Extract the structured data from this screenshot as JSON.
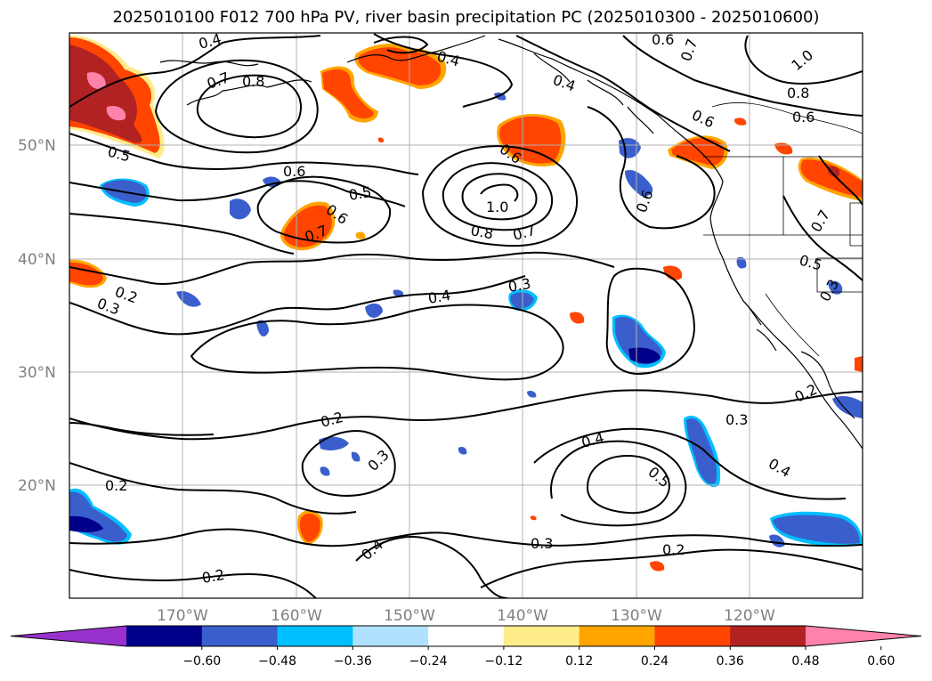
{
  "title": "2025010100 F012 700 hPa PV, river basin precipitation PC (2025010300 - 2025010600)",
  "longitude_labels": [
    "170°W",
    "160°W",
    "150°W",
    "140°W",
    "130°W",
    "120°W"
  ],
  "latitude_labels": [
    "50°N",
    "40°N",
    "30°N",
    "20°N"
  ],
  "contour_labels": [
    "0.4",
    "0.7",
    "0.8",
    "0.4",
    "0.6",
    "0.7",
    "1.0",
    "0.8",
    "0.6",
    "0.5",
    "0.6",
    "0.6",
    "1.0",
    "0.8",
    "0.7",
    "0.6",
    "0.5",
    "0.6",
    "0.7",
    "0.6",
    "0.7",
    "0.5",
    "0.2",
    "0.3",
    "0.4",
    "0.3",
    "0.2",
    "0.3",
    "0.3",
    "0.2",
    "0.4",
    "0.5",
    "0.3",
    "0.4",
    "0.2",
    "0.4",
    "0.3",
    "0.2",
    "0.2",
    "0.4"
  ],
  "colorbar": {
    "ticks": [
      "−0.60",
      "−0.48",
      "−0.36",
      "−0.24",
      "−0.12",
      "0.12",
      "0.24",
      "0.36",
      "0.48",
      "0.60"
    ],
    "colors": [
      "#9932cc",
      "#00008b",
      "#3a5fcd",
      "#00bfff",
      "#b0e2ff",
      "#ffffff",
      "#ffec8b",
      "#ffa500",
      "#ff4500",
      "#b22222",
      "#ff82ab"
    ]
  },
  "colors": {
    "land_outline": "#000000",
    "grid": "#b0b0b0",
    "contour": "#000000"
  }
}
